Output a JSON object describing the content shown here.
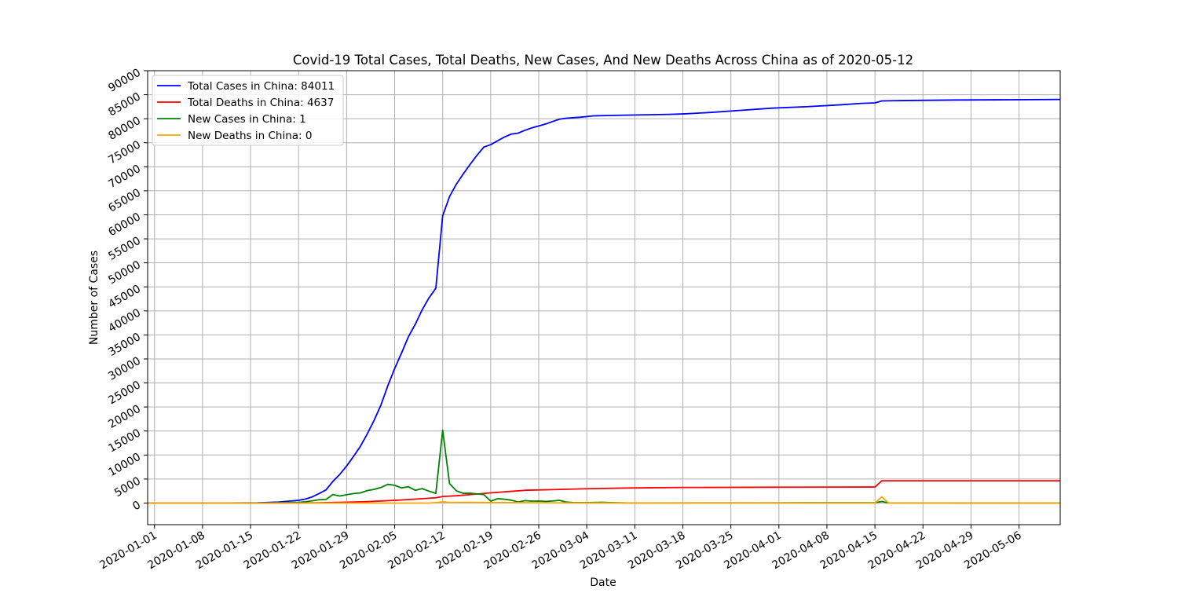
{
  "chart_data": {
    "type": "line",
    "title": "Covid-19 Total Cases, Total Deaths, New Cases, And New Deaths Across China as of 2020-05-12",
    "xlabel": "Date",
    "ylabel": "Number of Cases",
    "x_axis": {
      "kind": "date",
      "range": [
        "2019-12-31",
        "2020-05-12"
      ],
      "tick_labels": [
        "2020-01-01",
        "2020-01-08",
        "2020-01-15",
        "2020-01-22",
        "2020-01-29",
        "2020-02-05",
        "2020-02-12",
        "2020-02-19",
        "2020-02-26",
        "2020-03-04",
        "2020-03-11",
        "2020-03-18",
        "2020-03-25",
        "2020-04-01",
        "2020-04-08",
        "2020-04-15",
        "2020-04-22",
        "2020-04-29",
        "2020-05-06"
      ]
    },
    "y_axis": {
      "range": [
        -4500,
        90000
      ],
      "tick_labels": [
        "0",
        "5000",
        "10000",
        "15000",
        "20000",
        "25000",
        "30000",
        "35000",
        "40000",
        "45000",
        "50000",
        "55000",
        "60000",
        "65000",
        "70000",
        "75000",
        "80000",
        "85000",
        "90000"
      ]
    },
    "grid": true,
    "legend_position": "top-left",
    "series": [
      {
        "name": "Total Cases in China: 84011",
        "color": "#0000ff",
        "points": [
          [
            "2019-12-31",
            0
          ],
          [
            "2020-01-10",
            0
          ],
          [
            "2020-01-16",
            50
          ],
          [
            "2020-01-19",
            200
          ],
          [
            "2020-01-21",
            440
          ],
          [
            "2020-01-22",
            570
          ],
          [
            "2020-01-23",
            830
          ],
          [
            "2020-01-24",
            1290
          ],
          [
            "2020-01-25",
            1990
          ],
          [
            "2020-01-26",
            2740
          ],
          [
            "2020-01-27",
            4510
          ],
          [
            "2020-01-28",
            5970
          ],
          [
            "2020-01-29",
            7710
          ],
          [
            "2020-01-30",
            9690
          ],
          [
            "2020-01-31",
            11790
          ],
          [
            "2020-02-01",
            14380
          ],
          [
            "2020-02-02",
            17200
          ],
          [
            "2020-02-03",
            20400
          ],
          [
            "2020-02-04",
            24400
          ],
          [
            "2020-02-05",
            28000
          ],
          [
            "2020-02-06",
            31200
          ],
          [
            "2020-02-07",
            34600
          ],
          [
            "2020-02-08",
            37200
          ],
          [
            "2020-02-09",
            40200
          ],
          [
            "2020-02-10",
            42700
          ],
          [
            "2020-02-11",
            44700
          ],
          [
            "2020-02-12",
            59800
          ],
          [
            "2020-02-13",
            63800
          ],
          [
            "2020-02-14",
            66400
          ],
          [
            "2020-02-15",
            68500
          ],
          [
            "2020-02-16",
            70500
          ],
          [
            "2020-02-17",
            72400
          ],
          [
            "2020-02-18",
            74100
          ],
          [
            "2020-02-19",
            74600
          ],
          [
            "2020-02-20",
            75400
          ],
          [
            "2020-02-21",
            76200
          ],
          [
            "2020-02-22",
            76800
          ],
          [
            "2020-02-23",
            77000
          ],
          [
            "2020-02-24",
            77600
          ],
          [
            "2020-02-25",
            78100
          ],
          [
            "2020-02-26",
            78500
          ],
          [
            "2020-02-27",
            78900
          ],
          [
            "2020-02-28",
            79400
          ],
          [
            "2020-02-29",
            79900
          ],
          [
            "2020-03-01",
            80100
          ],
          [
            "2020-03-03",
            80300
          ],
          [
            "2020-03-05",
            80600
          ],
          [
            "2020-03-08",
            80700
          ],
          [
            "2020-03-12",
            80800
          ],
          [
            "2020-03-16",
            80900
          ],
          [
            "2020-03-18",
            81000
          ],
          [
            "2020-03-22",
            81300
          ],
          [
            "2020-03-26",
            81700
          ],
          [
            "2020-03-31",
            82200
          ],
          [
            "2020-04-05",
            82500
          ],
          [
            "2020-04-10",
            82900
          ],
          [
            "2020-04-13",
            83200
          ],
          [
            "2020-04-15",
            83300
          ],
          [
            "2020-04-16",
            83700
          ],
          [
            "2020-04-20",
            83800
          ],
          [
            "2020-04-27",
            83900
          ],
          [
            "2020-05-05",
            83950
          ],
          [
            "2020-05-12",
            84011
          ]
        ]
      },
      {
        "name": "Total Deaths in China: 4637",
        "color": "#ff0000",
        "points": [
          [
            "2019-12-31",
            0
          ],
          [
            "2020-01-20",
            0
          ],
          [
            "2020-01-25",
            50
          ],
          [
            "2020-01-29",
            170
          ],
          [
            "2020-02-01",
            300
          ],
          [
            "2020-02-05",
            560
          ],
          [
            "2020-02-08",
            810
          ],
          [
            "2020-02-11",
            1100
          ],
          [
            "2020-02-12",
            1360
          ],
          [
            "2020-02-14",
            1520
          ],
          [
            "2020-02-17",
            1870
          ],
          [
            "2020-02-19",
            2120
          ],
          [
            "2020-02-22",
            2440
          ],
          [
            "2020-02-24",
            2660
          ],
          [
            "2020-02-28",
            2800
          ],
          [
            "2020-03-04",
            2980
          ],
          [
            "2020-03-10",
            3130
          ],
          [
            "2020-03-18",
            3240
          ],
          [
            "2020-03-31",
            3300
          ],
          [
            "2020-04-14",
            3340
          ],
          [
            "2020-04-15",
            3340
          ],
          [
            "2020-04-16",
            4630
          ],
          [
            "2020-05-12",
            4637
          ]
        ]
      },
      {
        "name": "New Cases in China: 1",
        "color": "#008000",
        "points": [
          [
            "2019-12-31",
            0
          ],
          [
            "2020-01-15",
            0
          ],
          [
            "2020-01-20",
            80
          ],
          [
            "2020-01-22",
            150
          ],
          [
            "2020-01-23",
            260
          ],
          [
            "2020-01-24",
            460
          ],
          [
            "2020-01-25",
            690
          ],
          [
            "2020-01-26",
            750
          ],
          [
            "2020-01-27",
            1770
          ],
          [
            "2020-01-28",
            1460
          ],
          [
            "2020-01-29",
            1740
          ],
          [
            "2020-01-30",
            1980
          ],
          [
            "2020-01-31",
            2100
          ],
          [
            "2020-02-01",
            2590
          ],
          [
            "2020-02-02",
            2830
          ],
          [
            "2020-02-03",
            3240
          ],
          [
            "2020-02-04",
            3890
          ],
          [
            "2020-02-05",
            3700
          ],
          [
            "2020-02-06",
            3150
          ],
          [
            "2020-02-07",
            3400
          ],
          [
            "2020-02-08",
            2660
          ],
          [
            "2020-02-09",
            3000
          ],
          [
            "2020-02-10",
            2480
          ],
          [
            "2020-02-11",
            2020
          ],
          [
            "2020-02-12",
            15150
          ],
          [
            "2020-02-13",
            4050
          ],
          [
            "2020-02-14",
            2540
          ],
          [
            "2020-02-15",
            2020
          ],
          [
            "2020-02-16",
            2050
          ],
          [
            "2020-02-17",
            1900
          ],
          [
            "2020-02-18",
            1750
          ],
          [
            "2020-02-19",
            400
          ],
          [
            "2020-02-20",
            900
          ],
          [
            "2020-02-21",
            800
          ],
          [
            "2020-02-22",
            600
          ],
          [
            "2020-02-23",
            200
          ],
          [
            "2020-02-24",
            500
          ],
          [
            "2020-02-25",
            400
          ],
          [
            "2020-02-26",
            430
          ],
          [
            "2020-02-27",
            330
          ],
          [
            "2020-02-28",
            430
          ],
          [
            "2020-02-29",
            570
          ],
          [
            "2020-03-01",
            200
          ],
          [
            "2020-03-02",
            120
          ],
          [
            "2020-03-04",
            100
          ],
          [
            "2020-03-06",
            150
          ],
          [
            "2020-03-10",
            20
          ],
          [
            "2020-03-20",
            40
          ],
          [
            "2020-04-01",
            40
          ],
          [
            "2020-04-10",
            60
          ],
          [
            "2020-04-14",
            50
          ],
          [
            "2020-04-15",
            80
          ],
          [
            "2020-04-16",
            320
          ],
          [
            "2020-04-17",
            20
          ],
          [
            "2020-05-12",
            1
          ]
        ]
      },
      {
        "name": "New Deaths in China: 0",
        "color": "#ffa500",
        "points": [
          [
            "2019-12-31",
            0
          ],
          [
            "2020-02-10",
            0
          ],
          [
            "2020-02-11",
            100
          ],
          [
            "2020-02-12",
            250
          ],
          [
            "2020-02-13",
            120
          ],
          [
            "2020-02-15",
            140
          ],
          [
            "2020-02-20",
            110
          ],
          [
            "2020-02-28",
            40
          ],
          [
            "2020-03-05",
            30
          ],
          [
            "2020-03-20",
            5
          ],
          [
            "2020-04-15",
            0
          ],
          [
            "2020-04-16",
            1290
          ],
          [
            "2020-04-17",
            0
          ],
          [
            "2020-05-12",
            0
          ]
        ]
      }
    ]
  }
}
